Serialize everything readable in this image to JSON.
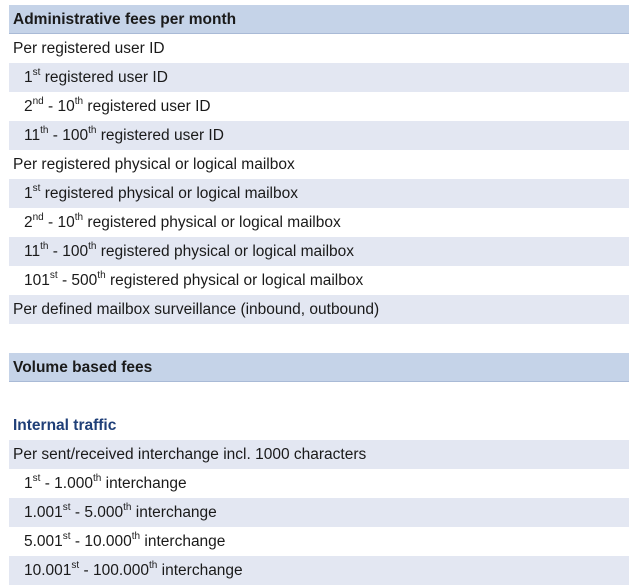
{
  "colors": {
    "header_bg": "#c5d3e8",
    "shaded_row_bg": "#e3e7f2",
    "section_title": "#1f3f78"
  },
  "rows": [
    {
      "kind": "header",
      "parts": [
        {
          "t": "Administrative fees per month"
        }
      ]
    },
    {
      "kind": "plain",
      "parts": [
        {
          "t": "Per registered user ID"
        }
      ]
    },
    {
      "kind": "shade",
      "indent": true,
      "parts": [
        {
          "t": "1"
        },
        {
          "t": "st",
          "sup": true
        },
        {
          "t": " registered user ID"
        }
      ]
    },
    {
      "kind": "plain",
      "indent": true,
      "parts": [
        {
          "t": "2"
        },
        {
          "t": "nd",
          "sup": true
        },
        {
          "t": " - 10"
        },
        {
          "t": "th",
          "sup": true
        },
        {
          "t": " registered user ID"
        }
      ]
    },
    {
      "kind": "shade",
      "indent": true,
      "parts": [
        {
          "t": "11"
        },
        {
          "t": "th",
          "sup": true
        },
        {
          "t": " - 100"
        },
        {
          "t": "th",
          "sup": true
        },
        {
          "t": " registered user ID"
        }
      ]
    },
    {
      "kind": "plain",
      "parts": [
        {
          "t": "Per registered physical or logical mailbox"
        }
      ]
    },
    {
      "kind": "shade",
      "indent": true,
      "parts": [
        {
          "t": "1"
        },
        {
          "t": "st",
          "sup": true
        },
        {
          "t": " registered physical or logical mailbox"
        }
      ]
    },
    {
      "kind": "plain",
      "indent": true,
      "parts": [
        {
          "t": "2"
        },
        {
          "t": "nd",
          "sup": true
        },
        {
          "t": " - 10"
        },
        {
          "t": "th",
          "sup": true
        },
        {
          "t": " registered physical or logical mailbox"
        }
      ]
    },
    {
      "kind": "shade",
      "indent": true,
      "parts": [
        {
          "t": "11"
        },
        {
          "t": "th",
          "sup": true
        },
        {
          "t": " - 100"
        },
        {
          "t": "th",
          "sup": true
        },
        {
          "t": " registered physical or logical mailbox"
        }
      ]
    },
    {
      "kind": "plain",
      "indent": true,
      "parts": [
        {
          "t": "101"
        },
        {
          "t": "st",
          "sup": true
        },
        {
          "t": " - 500"
        },
        {
          "t": "th",
          "sup": true
        },
        {
          "t": " registered physical or logical mailbox"
        }
      ]
    },
    {
      "kind": "shade",
      "parts": [
        {
          "t": "Per defined mailbox surveillance (inbound, outbound)"
        }
      ]
    },
    {
      "kind": "plain",
      "parts": []
    },
    {
      "kind": "header",
      "parts": [
        {
          "t": "Volume based fees"
        }
      ]
    },
    {
      "kind": "plain",
      "parts": []
    },
    {
      "kind": "section",
      "parts": [
        {
          "t": "Internal traffic"
        }
      ]
    },
    {
      "kind": "shade",
      "parts": [
        {
          "t": "Per sent/received interchange incl. 1000 characters"
        }
      ]
    },
    {
      "kind": "plain",
      "indent": true,
      "parts": [
        {
          "t": "1"
        },
        {
          "t": "st",
          "sup": true
        },
        {
          "t": " - 1.000"
        },
        {
          "t": "th",
          "sup": true
        },
        {
          "t": " interchange"
        }
      ]
    },
    {
      "kind": "shade",
      "indent": true,
      "parts": [
        {
          "t": "1.001"
        },
        {
          "t": "st",
          "sup": true
        },
        {
          "t": " - 5.000"
        },
        {
          "t": "th",
          "sup": true
        },
        {
          "t": " interchange"
        }
      ]
    },
    {
      "kind": "plain",
      "indent": true,
      "parts": [
        {
          "t": "5.001"
        },
        {
          "t": "st",
          "sup": true
        },
        {
          "t": " - 10.000"
        },
        {
          "t": "th",
          "sup": true
        },
        {
          "t": " interchange"
        }
      ]
    },
    {
      "kind": "shade",
      "indent": true,
      "parts": [
        {
          "t": "10.001"
        },
        {
          "t": "st",
          "sup": true
        },
        {
          "t": " - 100.000"
        },
        {
          "t": "th",
          "sup": true
        },
        {
          "t": " interchange"
        }
      ]
    }
  ]
}
